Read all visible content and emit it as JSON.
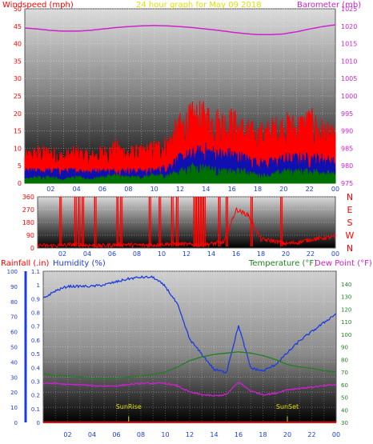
{
  "chart_data": [
    {
      "type": "line",
      "title": "24 hour graph for   May 09 2018",
      "ylabel": "Windspeed (mph)",
      "y2label": "Barometer (mb)",
      "x_ticks": [
        "02",
        "04",
        "06",
        "08",
        "10",
        "12",
        "14",
        "16",
        "18",
        "20",
        "22",
        "00"
      ],
      "y_ticks": [
        0,
        5,
        10,
        15,
        20,
        25,
        30,
        35,
        40,
        45,
        50
      ],
      "y2_ticks": [
        975,
        980,
        985,
        990,
        995,
        1000,
        1005,
        1010,
        1015,
        1020,
        1025
      ],
      "ylim": [
        0,
        50
      ],
      "y2lim": [
        975,
        1025
      ],
      "x": [
        0,
        1,
        2,
        3,
        4,
        5,
        6,
        7,
        8,
        9,
        10,
        11,
        12,
        13,
        14,
        15,
        16,
        17,
        18,
        19,
        20,
        21,
        22,
        23,
        24
      ],
      "series": [
        {
          "key": "barometer",
          "axis": "right",
          "color": "#d020d0",
          "values": [
            1019.5,
            1019.2,
            1018.8,
            1018.6,
            1018.6,
            1018.8,
            1019.2,
            1019.6,
            1019.9,
            1020.1,
            1020.2,
            1020.1,
            1019.9,
            1019.6,
            1019.2,
            1018.8,
            1018.3,
            1017.9,
            1017.6,
            1017.6,
            1017.8,
            1018.4,
            1019.2,
            1019.9,
            1020.4
          ]
        },
        {
          "key": "wind_gust",
          "axis": "left",
          "color": "#ff0000",
          "values": [
            6,
            7,
            7,
            6,
            7,
            6,
            7,
            8,
            7,
            7,
            8,
            9,
            13,
            15,
            15,
            14,
            14,
            12,
            11,
            12,
            13,
            13,
            14,
            12,
            10
          ]
        },
        {
          "key": "wind_speed",
          "axis": "left",
          "color": "#1010b0",
          "values": [
            3,
            3,
            3,
            3,
            3,
            3,
            3,
            3,
            3,
            3,
            3,
            4,
            6,
            7,
            8,
            7,
            7,
            6,
            5,
            5,
            6,
            6,
            6,
            6,
            5
          ]
        },
        {
          "key": "wind_avg",
          "axis": "left",
          "color": "#007000",
          "values": [
            1,
            1.5,
            1.5,
            1,
            1.5,
            1,
            1.5,
            2,
            1.5,
            1.5,
            2,
            2,
            3,
            4,
            4,
            3,
            3,
            3,
            2,
            2,
            3,
            3,
            3,
            3,
            2
          ]
        }
      ]
    },
    {
      "type": "line",
      "y_ticks": [
        0,
        90,
        180,
        270,
        360
      ],
      "y2_ticks": [
        "N",
        "W",
        "S",
        "E",
        "N"
      ],
      "ylim": [
        0,
        360
      ],
      "x_ticks": [
        "02",
        "04",
        "06",
        "08",
        "10",
        "12",
        "14",
        "16",
        "18",
        "20",
        "22",
        "00"
      ],
      "series": [
        {
          "key": "wind_direction",
          "color": "#ff0000",
          "values": [
            20,
            15,
            20,
            25,
            20,
            15,
            20,
            25,
            20,
            20,
            25,
            30,
            25,
            20,
            30,
            40,
            270,
            230,
            60,
            50,
            30,
            40,
            60,
            70,
            80
          ],
          "spikes": [
            1.8,
            3.0,
            3.3,
            3.6,
            4.6,
            6.4,
            6.7,
            9.0,
            9.8,
            10.8,
            11.2,
            12.6,
            12.8,
            13.0,
            13.2,
            13.4,
            14.6,
            15.2,
            17.2,
            19.6
          ]
        }
      ]
    },
    {
      "type": "line",
      "ylabel": "Rainfall (.in)",
      "ylabel2": "Humidity (%)",
      "y2label": "Temperature (°F)",
      "y2label2": "Dew Point (°F)",
      "humidity_ticks": [
        0,
        10,
        20,
        30,
        40,
        50,
        60,
        70,
        80,
        90,
        100
      ],
      "rain_ticks": [
        0,
        0.1,
        0.2,
        0.3,
        0.4,
        0.5,
        0.6,
        0.7,
        0.8,
        0.9,
        1,
        1.1
      ],
      "temp_ticks": [
        30,
        40,
        50,
        60,
        70,
        80,
        90,
        100,
        110,
        120,
        130,
        140
      ],
      "humidity_lim": [
        0,
        100
      ],
      "rain_lim": [
        0,
        1.1
      ],
      "temp_lim": [
        30,
        150
      ],
      "x_ticks": [
        "02",
        "04",
        "06",
        "08",
        "10",
        "12",
        "14",
        "16",
        "18",
        "20",
        "22",
        "00"
      ],
      "annotations": [
        {
          "text": "SunRise",
          "hour": 7.0
        },
        {
          "text": "SunSet",
          "hour": 20.0
        }
      ],
      "x": [
        0,
        1,
        2,
        3,
        4,
        5,
        6,
        7,
        8,
        9,
        10,
        11,
        12,
        13,
        14,
        15,
        16,
        17,
        18,
        19,
        20,
        21,
        22,
        23,
        24
      ],
      "series": [
        {
          "key": "humidity",
          "axis": "humidity",
          "color": "#1a3ce0",
          "values": [
            82,
            87,
            90,
            90,
            90,
            91,
            93,
            95,
            96,
            96,
            90,
            78,
            55,
            45,
            35,
            33,
            64,
            36,
            34,
            38,
            46,
            54,
            60,
            66,
            72
          ]
        },
        {
          "key": "temperature",
          "axis": "temp",
          "color": "#208020",
          "values": [
            69,
            67,
            67,
            66,
            65,
            65,
            65,
            66,
            67,
            68,
            70,
            74,
            79,
            82,
            84,
            85,
            86,
            85,
            83,
            80,
            76,
            74,
            73,
            71,
            70
          ]
        },
        {
          "key": "dew_point",
          "axis": "temp",
          "color": "#d020d0",
          "values": [
            61,
            61,
            60,
            60,
            59,
            59,
            59,
            60,
            61,
            61,
            61,
            59,
            54,
            52,
            51,
            52,
            62,
            55,
            52,
            53,
            56,
            57,
            58,
            59,
            60
          ]
        },
        {
          "key": "rainfall",
          "axis": "rain",
          "color": "#ff0000",
          "values": [
            0,
            0,
            0,
            0,
            0,
            0,
            0,
            0,
            0,
            0,
            0,
            0,
            0,
            0,
            0,
            0,
            0,
            0,
            0,
            0,
            0,
            0,
            0,
            0,
            0
          ]
        }
      ]
    }
  ]
}
